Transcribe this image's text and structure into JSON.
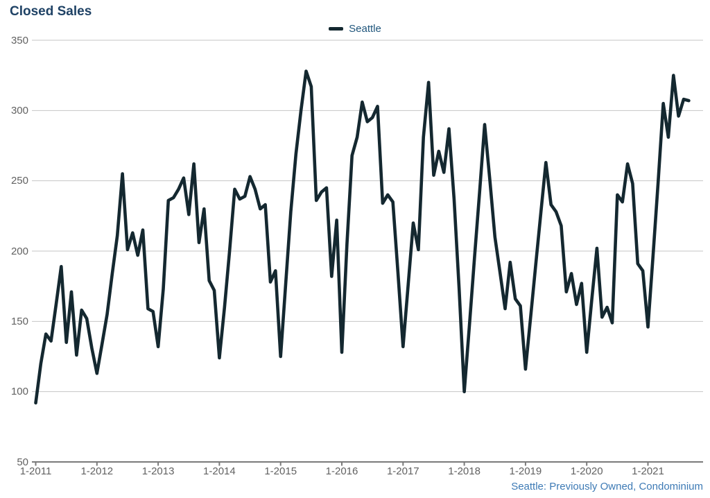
{
  "header": {
    "title": "Closed Sales"
  },
  "legend": {
    "label": "Seattle"
  },
  "footnote": {
    "text": "Seattle: Previously Owned, Condominium"
  },
  "colors": {
    "line": "#142830",
    "title_text": "#1f4265",
    "legend_text": "#20567c",
    "axis_text": "#616161",
    "gridline": "#c6c6c6",
    "axis_line": "#7a7a7a",
    "footnote_text": "#3d7ab5",
    "background": "#ffffff"
  },
  "chart_data": {
    "type": "line",
    "title": "Closed Sales",
    "series_name": "Seattle",
    "x_unit": "month",
    "x_start_label": "1-2011",
    "x_end_label": "9-2021",
    "x_tick_labels": [
      "1-2011",
      "1-2012",
      "1-2013",
      "1-2014",
      "1-2015",
      "1-2016",
      "1-2017",
      "1-2018",
      "1-2019",
      "1-2020",
      "1-2021"
    ],
    "y_tick_labels": [
      350,
      300,
      250,
      200,
      150,
      100,
      50
    ],
    "ylim": [
      50,
      350
    ],
    "grid": "horizontal",
    "legend_position": "top-center",
    "values": [
      92,
      120,
      141,
      136,
      162,
      189,
      135,
      171,
      126,
      158,
      152,
      131,
      113,
      134,
      155,
      184,
      211,
      255,
      201,
      213,
      197,
      215,
      159,
      157,
      132,
      173,
      236,
      238,
      244,
      252,
      226,
      262,
      206,
      230,
      179,
      172,
      124,
      160,
      200,
      244,
      237,
      239,
      253,
      244,
      230,
      233,
      178,
      186,
      125,
      177,
      228,
      269,
      300,
      328,
      317,
      236,
      242,
      245,
      182,
      222,
      128,
      205,
      268,
      281,
      306,
      292,
      295,
      303,
      234,
      240,
      235,
      185,
      132,
      176,
      220,
      201,
      281,
      320,
      254,
      271,
      256,
      287,
      237,
      173,
      100,
      147,
      195,
      242,
      290,
      251,
      210,
      185,
      159,
      192,
      166,
      161,
      116,
      153,
      190,
      227,
      263,
      233,
      228,
      218,
      171,
      184,
      162,
      177,
      128,
      166,
      202,
      153,
      160,
      149,
      240,
      235,
      262,
      248,
      191,
      186,
      146,
      197,
      249,
      305,
      281,
      325,
      296,
      308,
      307
    ]
  }
}
